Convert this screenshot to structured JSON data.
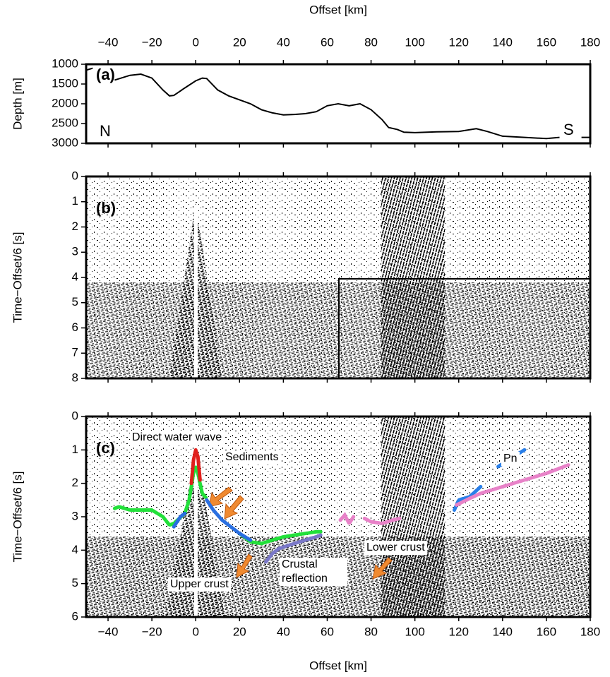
{
  "chart_data": [
    {
      "type": "line",
      "x_label": "Offset [km]",
      "y_label": "Depth [m]",
      "panel_label": "(a)",
      "annotations": [
        "N",
        "S"
      ],
      "x": [
        -50,
        -47,
        null,
        -37,
        -30,
        -25,
        -20,
        -15,
        -12,
        -10,
        -5,
        0,
        3,
        5,
        10,
        15,
        20,
        25,
        30,
        35,
        40,
        45,
        50,
        55,
        60,
        65,
        70,
        75,
        80,
        85,
        88,
        92,
        95,
        100,
        110,
        120,
        128,
        133,
        140,
        150,
        160,
        166,
        null,
        176,
        180
      ],
      "values": [
        1150,
        1100,
        null,
        1400,
        1280,
        1250,
        1350,
        1650,
        1800,
        1790,
        1600,
        1420,
        1350,
        1360,
        1650,
        1800,
        1900,
        2000,
        2150,
        2230,
        2280,
        2270,
        2250,
        2200,
        2050,
        2000,
        2050,
        2000,
        2150,
        2400,
        2600,
        2650,
        2720,
        2730,
        2710,
        2700,
        2630,
        2700,
        2820,
        2850,
        2880,
        2850,
        null,
        2850,
        2850
      ],
      "color": "#000000",
      "xlim": [
        -50,
        180
      ],
      "ylim": [
        1000,
        3000
      ],
      "y_inverted": true,
      "xticks": [
        {
          "value": -40,
          "label": "−40"
        },
        {
          "value": -20,
          "label": "−20"
        },
        0,
        20,
        40,
        60,
        80,
        100,
        120,
        140,
        160,
        180
      ],
      "yticks": [
        1000,
        1500,
        2000,
        2500,
        3000
      ]
    },
    {
      "type": "seismic",
      "y_label": "Time−Offset/6 [s]",
      "panel_label": "(b)",
      "xlim": [
        -50,
        180
      ],
      "ylim": [
        0,
        8
      ],
      "y_inverted": true,
      "xticks": [
        {
          "value": -40,
          "label": "−40"
        },
        {
          "value": -20,
          "label": "−20"
        },
        0,
        20,
        40,
        60,
        80,
        100,
        120,
        140,
        160,
        180
      ],
      "yticks": [
        0,
        1,
        2,
        3,
        4,
        5,
        6,
        7,
        8
      ]
    },
    {
      "type": "picks",
      "x_label": "Offset [km]",
      "y_label": "Time−Offset/6 [s]",
      "panel_label": "(c)",
      "xlim": [
        -50,
        180
      ],
      "ylim": [
        0,
        6
      ],
      "y_inverted": true,
      "xticks": [
        {
          "value": -40,
          "label": "−40"
        },
        {
          "value": -20,
          "label": "−20"
        },
        0,
        20,
        40,
        60,
        80,
        100,
        120,
        140,
        160,
        180
      ],
      "yticks": [
        0,
        1,
        2,
        3,
        4,
        5,
        6
      ],
      "series": [
        {
          "name": "Sediments",
          "color": "#22e03a",
          "x": [
            -37,
            -35,
            -30,
            -25,
            -20,
            -15,
            -12,
            -10,
            -5,
            -3,
            -1,
            0,
            1,
            3,
            5,
            null,
            20,
            25,
            30,
            35,
            40,
            45,
            50,
            55,
            57
          ],
          "values": [
            2.75,
            2.7,
            2.8,
            2.8,
            2.8,
            3.0,
            3.25,
            3.2,
            2.9,
            2.5,
            1.7,
            1.5,
            1.7,
            2.3,
            2.45,
            null,
            3.5,
            3.75,
            3.8,
            3.7,
            3.6,
            3.55,
            3.5,
            3.45,
            3.45
          ]
        },
        {
          "name": "Direct water wave",
          "color": "#e0201c",
          "x": [
            -2,
            -1,
            0,
            1,
            2
          ],
          "values": [
            2.0,
            1.3,
            1.0,
            1.2,
            1.9
          ]
        },
        {
          "name": "Upper crust",
          "color": "#2a6fe0",
          "x": [
            -10,
            -7,
            -5,
            null,
            5,
            8,
            12,
            15,
            20,
            25
          ],
          "values": [
            3.3,
            3.0,
            2.9,
            null,
            2.5,
            2.8,
            3.1,
            3.25,
            3.5,
            3.7
          ]
        },
        {
          "name": "Crustal reflection",
          "color": "#7a78c8",
          "x": [
            32,
            35,
            38,
            45,
            50,
            55,
            57
          ],
          "values": [
            4.35,
            4.1,
            3.95,
            3.8,
            3.7,
            3.6,
            3.55
          ]
        },
        {
          "name": "Lower crust",
          "color": "#e882c8",
          "x": [
            66,
            68,
            70,
            72,
            null,
            77,
            80,
            85,
            90,
            93
          ],
          "values": [
            3.1,
            2.95,
            3.2,
            3.0,
            null,
            3.05,
            3.15,
            3.2,
            3.1,
            3.05
          ]
        },
        {
          "name": "Pn",
          "color": "#2a7fe8",
          "x": [
            118,
            120,
            125,
            130,
            null,
            138,
            145,
            150,
            null,
            158,
            null,
            166
          ],
          "values": [
            2.8,
            2.5,
            2.4,
            2.1,
            null,
            1.5,
            1.2,
            1.0,
            null,
            0.8,
            null,
            0.6
          ]
        },
        {
          "color": "#e882c8",
          "x": [
            119,
            125,
            130,
            140,
            150,
            160,
            170
          ],
          "values": [
            2.65,
            2.45,
            2.3,
            2.1,
            1.9,
            1.7,
            1.45
          ]
        }
      ]
    }
  ]
}
